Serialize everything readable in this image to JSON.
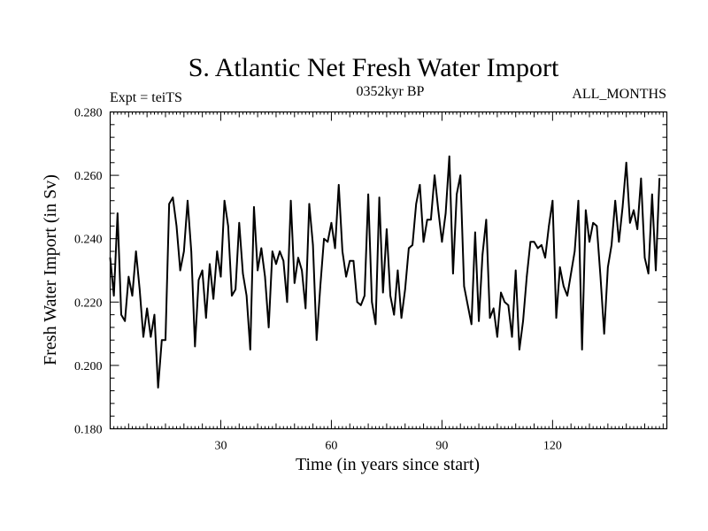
{
  "chart_data": {
    "type": "line",
    "title": "S. Atlantic Net Fresh Water Import",
    "left_label": "Expt = teiTS",
    "center_label": "0352kyr BP",
    "right_label": "ALL_MONTHS",
    "xlabel": "Time (in years since start)",
    "ylabel": "Fresh Water Import (in Sv)",
    "xlim": [
      0,
      151
    ],
    "ylim": [
      0.18,
      0.28
    ],
    "x_ticks": [
      30,
      60,
      90,
      120
    ],
    "y_ticks": [
      0.18,
      0.2,
      0.22,
      0.24,
      0.26,
      0.28
    ],
    "y_tick_labels": [
      "0.180",
      "0.200",
      "0.220",
      "0.240",
      "0.260",
      "0.280"
    ],
    "series": [
      {
        "name": "Fresh Water Import",
        "x_start": 0,
        "x_step": 1,
        "values": [
          0.234,
          0.222,
          0.248,
          0.216,
          0.214,
          0.228,
          0.222,
          0.236,
          0.224,
          0.209,
          0.218,
          0.209,
          0.216,
          0.193,
          0.208,
          0.208,
          0.251,
          0.253,
          0.244,
          0.23,
          0.236,
          0.252,
          0.236,
          0.206,
          0.227,
          0.23,
          0.215,
          0.232,
          0.221,
          0.236,
          0.228,
          0.252,
          0.244,
          0.222,
          0.224,
          0.245,
          0.229,
          0.222,
          0.205,
          0.25,
          0.23,
          0.237,
          0.228,
          0.212,
          0.236,
          0.232,
          0.236,
          0.233,
          0.22,
          0.252,
          0.226,
          0.234,
          0.23,
          0.218,
          0.251,
          0.238,
          0.208,
          0.225,
          0.24,
          0.239,
          0.245,
          0.237,
          0.257,
          0.236,
          0.228,
          0.233,
          0.233,
          0.22,
          0.219,
          0.222,
          0.254,
          0.22,
          0.213,
          0.253,
          0.223,
          0.243,
          0.222,
          0.216,
          0.23,
          0.215,
          0.224,
          0.237,
          0.238,
          0.251,
          0.257,
          0.239,
          0.246,
          0.246,
          0.26,
          0.249,
          0.239,
          0.248,
          0.266,
          0.229,
          0.254,
          0.26,
          0.225,
          0.219,
          0.213,
          0.242,
          0.214,
          0.235,
          0.246,
          0.215,
          0.218,
          0.209,
          0.223,
          0.22,
          0.219,
          0.209,
          0.23,
          0.205,
          0.214,
          0.228,
          0.239,
          0.239,
          0.237,
          0.238,
          0.234,
          0.244,
          0.252,
          0.215,
          0.231,
          0.225,
          0.222,
          0.229,
          0.236,
          0.252,
          0.205,
          0.249,
          0.239,
          0.245,
          0.244,
          0.228,
          0.21,
          0.231,
          0.238,
          0.252,
          0.239,
          0.25,
          0.264,
          0.245,
          0.249,
          0.243,
          0.259,
          0.234,
          0.229,
          0.254,
          0.23,
          0.259
        ]
      }
    ]
  }
}
